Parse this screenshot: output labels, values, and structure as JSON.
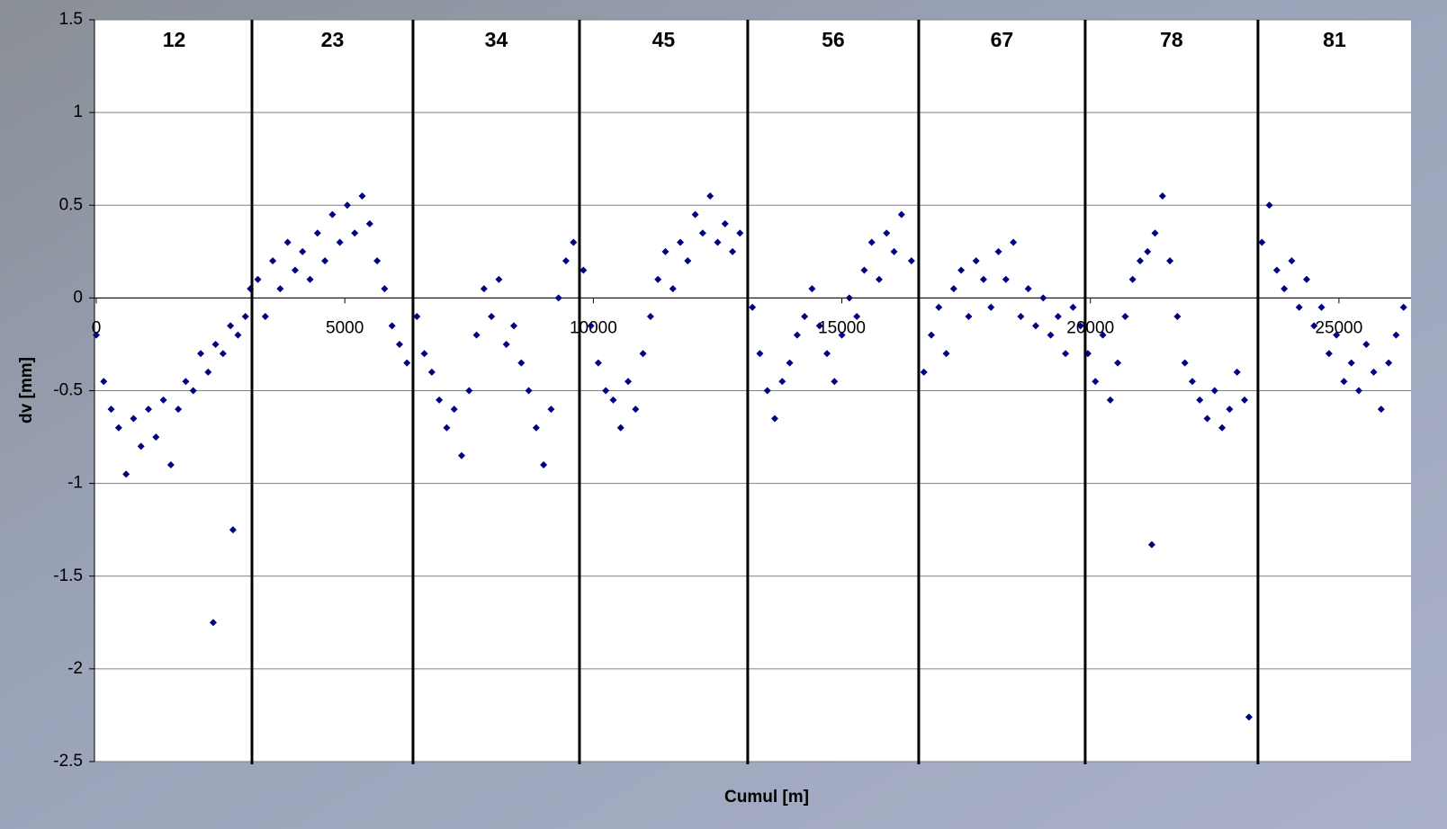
{
  "chart_data": {
    "type": "scatter",
    "x_label": "Cumul [m]",
    "y_label": "dv [mm]",
    "xlim": [
      0,
      26450
    ],
    "ylim": [
      -2.5,
      1.5
    ],
    "xticks": [
      0,
      5000,
      10000,
      15000,
      20000,
      25000
    ],
    "yticks": [
      -2.5,
      -2,
      -1.5,
      -1,
      -0.5,
      0,
      0.5,
      1,
      1.5
    ],
    "grid": true,
    "color": "#000080",
    "section_dividers": [
      3132,
      6372,
      9721,
      13106,
      16546,
      19895,
      23371
    ],
    "section_labels": [
      "12",
      "23",
      "34",
      "45",
      "56",
      "67",
      "78",
      "81"
    ],
    "x": [
      0,
      150,
      300,
      450,
      600,
      750,
      900,
      1050,
      1200,
      1350,
      1500,
      1650,
      1800,
      1950,
      2100,
      2250,
      2353,
      2400,
      2550,
      2700,
      2750,
      2850,
      3000,
      3100,
      3250,
      3400,
      3550,
      3700,
      3850,
      4000,
      4150,
      4300,
      4450,
      4600,
      4750,
      4900,
      5050,
      5200,
      5350,
      5500,
      5650,
      5800,
      5950,
      6100,
      6250,
      6450,
      6600,
      6750,
      6900,
      7050,
      7200,
      7350,
      7500,
      7650,
      7800,
      7950,
      8100,
      8250,
      8400,
      8550,
      8700,
      8850,
      9000,
      9150,
      9300,
      9450,
      9600,
      9800,
      9950,
      10100,
      10250,
      10400,
      10550,
      10700,
      10850,
      11000,
      11150,
      11300,
      11450,
      11600,
      11750,
      11900,
      12050,
      12200,
      12350,
      12500,
      12650,
      12800,
      12950,
      13200,
      13350,
      13500,
      13650,
      13800,
      13950,
      14100,
      14250,
      14400,
      14550,
      14700,
      14850,
      15000,
      15150,
      15300,
      15450,
      15600,
      15750,
      15900,
      16050,
      16200,
      16400,
      16650,
      16800,
      16950,
      17100,
      17250,
      17400,
      17550,
      17700,
      17850,
      18000,
      18150,
      18300,
      18450,
      18600,
      18750,
      18900,
      19050,
      19200,
      19350,
      19500,
      19650,
      19800,
      19950,
      20100,
      20250,
      20400,
      20550,
      20700,
      20850,
      21000,
      21150,
      21235,
      21300,
      21450,
      21600,
      21750,
      21900,
      22050,
      22200,
      22350,
      22500,
      22650,
      22800,
      22950,
      23100,
      23190,
      23450,
      23600,
      23750,
      23900,
      24050,
      24200,
      24350,
      24500,
      24650,
      24800,
      24950,
      25100,
      25250,
      25400,
      25550,
      25700,
      25850,
      26000,
      26150,
      26300
    ],
    "values": [
      -0.2,
      -0.45,
      -0.6,
      -0.7,
      -0.95,
      -0.65,
      -0.8,
      -0.6,
      -0.75,
      -0.55,
      -0.9,
      -0.6,
      -0.45,
      -0.5,
      -0.3,
      -0.4,
      -1.75,
      -0.25,
      -0.3,
      -0.15,
      -1.25,
      -0.2,
      -0.1,
      0.05,
      0.1,
      -0.1,
      0.2,
      0.05,
      0.3,
      0.15,
      0.25,
      0.1,
      0.35,
      0.2,
      0.45,
      0.3,
      0.5,
      0.35,
      0.55,
      0.4,
      0.2,
      0.05,
      -0.15,
      -0.25,
      -0.35,
      -0.1,
      -0.3,
      -0.4,
      -0.55,
      -0.7,
      -0.6,
      -0.85,
      -0.5,
      -0.2,
      0.05,
      -0.1,
      0.1,
      -0.25,
      -0.15,
      -0.35,
      -0.5,
      -0.7,
      -0.9,
      -0.6,
      0.0,
      0.2,
      0.3,
      0.15,
      -0.15,
      -0.35,
      -0.5,
      -0.55,
      -0.7,
      -0.45,
      -0.6,
      -0.3,
      -0.1,
      0.1,
      0.25,
      0.05,
      0.3,
      0.2,
      0.45,
      0.35,
      0.55,
      0.3,
      0.4,
      0.25,
      0.35,
      -0.05,
      -0.3,
      -0.5,
      -0.65,
      -0.45,
      -0.35,
      -0.2,
      -0.1,
      0.05,
      -0.15,
      -0.3,
      -0.45,
      -0.2,
      0.0,
      -0.1,
      0.15,
      0.3,
      0.1,
      0.35,
      0.25,
      0.45,
      0.2,
      -0.4,
      -0.2,
      -0.05,
      -0.3,
      0.05,
      0.15,
      -0.1,
      0.2,
      0.1,
      -0.05,
      0.25,
      0.1,
      0.3,
      -0.1,
      0.05,
      -0.15,
      0.0,
      -0.2,
      -0.1,
      -0.3,
      -0.05,
      -0.15,
      -0.3,
      -0.45,
      -0.2,
      -0.55,
      -0.35,
      -0.1,
      0.1,
      0.2,
      0.25,
      -1.33,
      0.35,
      0.55,
      0.2,
      -0.1,
      -0.35,
      -0.45,
      -0.55,
      -0.65,
      -0.5,
      -0.7,
      -0.6,
      -0.4,
      -0.55,
      -2.26,
      0.3,
      0.5,
      0.15,
      0.05,
      0.2,
      -0.05,
      0.1,
      -0.15,
      -0.05,
      -0.3,
      -0.2,
      -0.45,
      -0.35,
      -0.5,
      -0.25,
      -0.4,
      -0.6,
      -0.35,
      -0.2,
      -0.05
    ]
  }
}
